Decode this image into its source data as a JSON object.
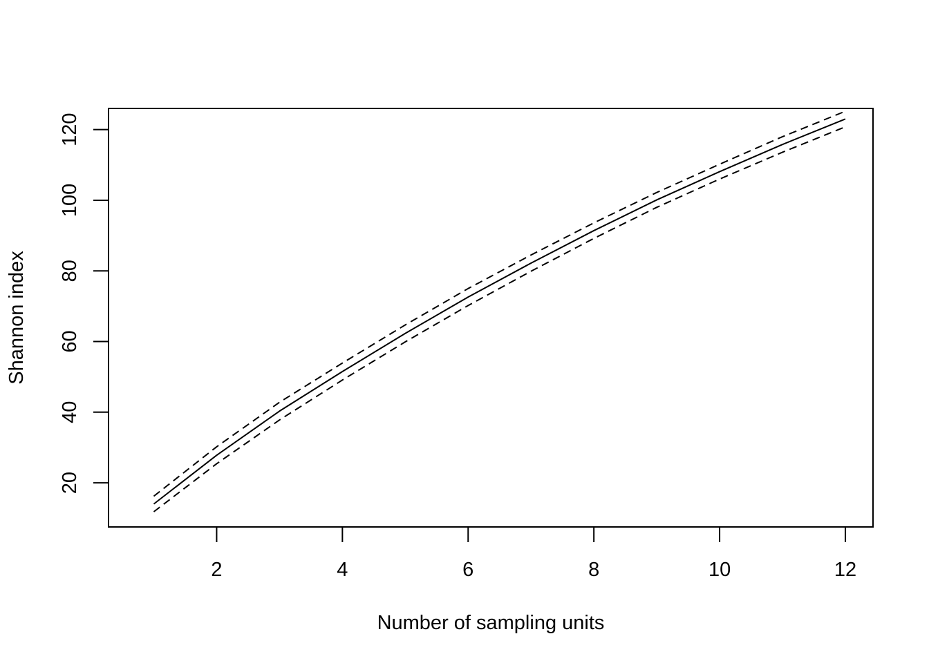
{
  "chart_data": {
    "type": "line",
    "title": "",
    "xlabel": "Number of sampling units",
    "ylabel": "Shannon index",
    "xlim": [
      0.28,
      12.44
    ],
    "ylim": [
      7.5,
      126.0
    ],
    "xticks": [
      2,
      4,
      6,
      8,
      10,
      12
    ],
    "yticks": [
      20,
      40,
      60,
      80,
      100,
      120
    ],
    "grid": false,
    "legend": "none",
    "x": [
      1,
      2,
      3,
      4,
      5,
      6,
      7,
      8,
      9,
      10,
      11,
      12
    ],
    "series": [
      {
        "style": "solid",
        "color": "#000000",
        "values": [
          14.0,
          27.8,
          40.3,
          51.5,
          62.3,
          72.6,
          82.2,
          91.4,
          100.1,
          108.1,
          115.8,
          123.0
        ]
      },
      {
        "style": "dashed",
        "color": "#000000",
        "values": [
          16.2,
          30.2,
          42.8,
          53.9,
          64.7,
          75.0,
          84.5,
          93.6,
          102.2,
          110.2,
          118.0,
          125.2
        ]
      },
      {
        "style": "dashed",
        "color": "#000000",
        "values": [
          11.8,
          25.4,
          37.8,
          49.1,
          59.9,
          70.2,
          79.9,
          89.2,
          98.0,
          106.0,
          113.6,
          120.8
        ]
      }
    ]
  }
}
